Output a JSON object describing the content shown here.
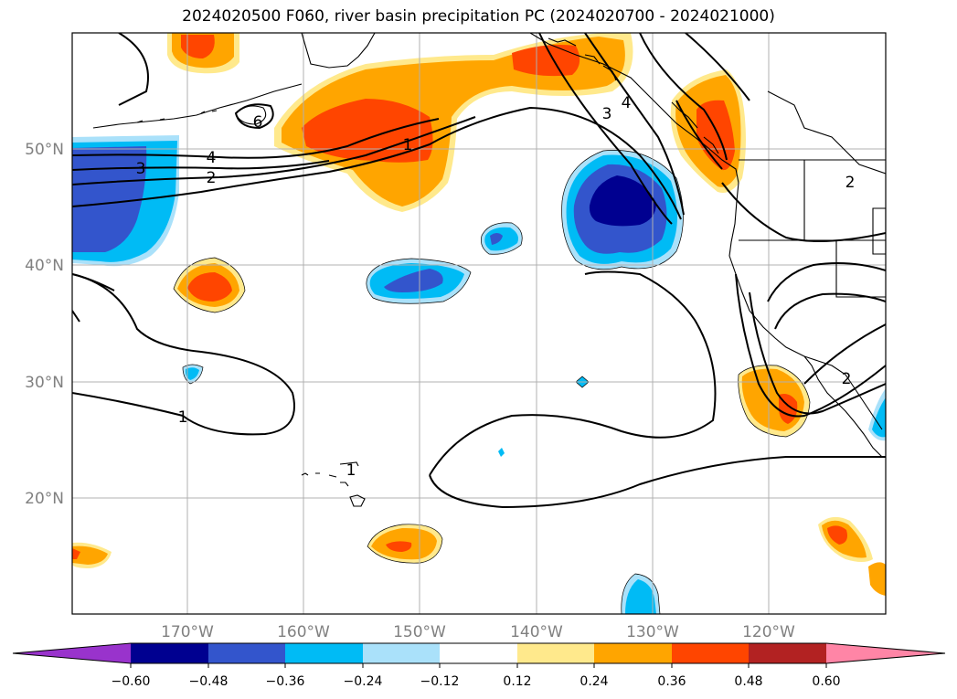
{
  "title": "2024020500 F060, river basin precipitation PC (2024020700 - 2024021000)",
  "map": {
    "lon_range": [
      -180,
      -110
    ],
    "lat_range": [
      10,
      60
    ],
    "lon_ticks": [
      {
        "value": -170,
        "label": "170°W"
      },
      {
        "value": -160,
        "label": "160°W"
      },
      {
        "value": -150,
        "label": "150°W"
      },
      {
        "value": -140,
        "label": "140°W"
      },
      {
        "value": -130,
        "label": "130°W"
      },
      {
        "value": -120,
        "label": "120°W"
      }
    ],
    "lat_ticks": [
      {
        "value": 50,
        "label": "50°N"
      },
      {
        "value": 40,
        "label": "40°N"
      },
      {
        "value": 30,
        "label": "30°N"
      },
      {
        "value": 20,
        "label": "20°N"
      }
    ],
    "grid": true
  },
  "contour_labels": [
    "6",
    "4",
    "3",
    "2",
    "1",
    "1",
    "1",
    "3",
    "4",
    "2",
    "2"
  ],
  "colorbar": {
    "orientation": "horizontal",
    "extend": "both",
    "ticks": [
      "−0.60",
      "−0.48",
      "−0.36",
      "−0.24",
      "−0.12",
      "0.12",
      "0.24",
      "0.36",
      "0.48",
      "0.60"
    ],
    "colors": [
      "#9933cc",
      "#000090",
      "#3355cc",
      "#00bbf5",
      "#aae1fa",
      "#ffffff",
      "#ffe98c",
      "#ffa500",
      "#ff4500",
      "#b22222",
      "#ff85a6"
    ]
  }
}
